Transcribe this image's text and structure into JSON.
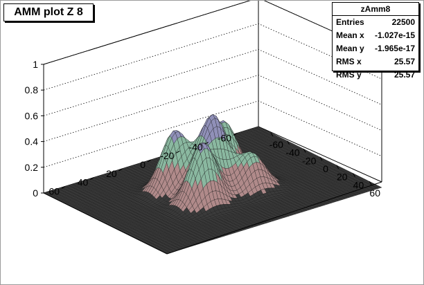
{
  "chart_data": {
    "type": "surface3d",
    "title": "AMM plot Z 8",
    "xlabel": "",
    "ylabel": "",
    "zlabel": "",
    "xlim": [
      -75,
      75
    ],
    "ylim": [
      -75,
      75
    ],
    "zlim": [
      0,
      1
    ],
    "x_ticks": [
      -60,
      -40,
      -20,
      0,
      20,
      40,
      60
    ],
    "y_ticks": [
      60,
      40,
      20,
      0,
      -20,
      -40,
      -60
    ],
    "z_ticks": [
      0,
      0.2,
      0.4,
      0.6,
      0.8,
      1
    ],
    "z_tick_labels": [
      "0",
      "0.2",
      "0.4",
      "0.6",
      "0.8",
      "1"
    ],
    "grid": true,
    "legend": "none",
    "colors": {
      "mesh_line": "#1a1a1a",
      "surface_low": "#3a3a3a",
      "surface_mid": "#b08a8a",
      "surface_high": "#8ab8a0",
      "surface_top": "#9090b8"
    },
    "peaks": [
      {
        "x": 0,
        "y": 0,
        "z": 0.56
      },
      {
        "x": -17,
        "y": -17,
        "z": 0.42
      },
      {
        "x": 17,
        "y": 17,
        "z": 0.47
      },
      {
        "x": -17,
        "y": 17,
        "z": 0.46
      },
      {
        "x": 17,
        "y": -17,
        "z": 0.28
      }
    ]
  },
  "stats": {
    "name": "zAmm8",
    "rows": [
      {
        "label": "Entries",
        "value": "22500"
      },
      {
        "label": "Mean x",
        "value": "-1.027e-15"
      },
      {
        "label": "Mean y",
        "value": "-1.965e-17"
      },
      {
        "label": "RMS x",
        "value": "25.57"
      },
      {
        "label": "RMS y",
        "value": "25.57"
      }
    ]
  }
}
